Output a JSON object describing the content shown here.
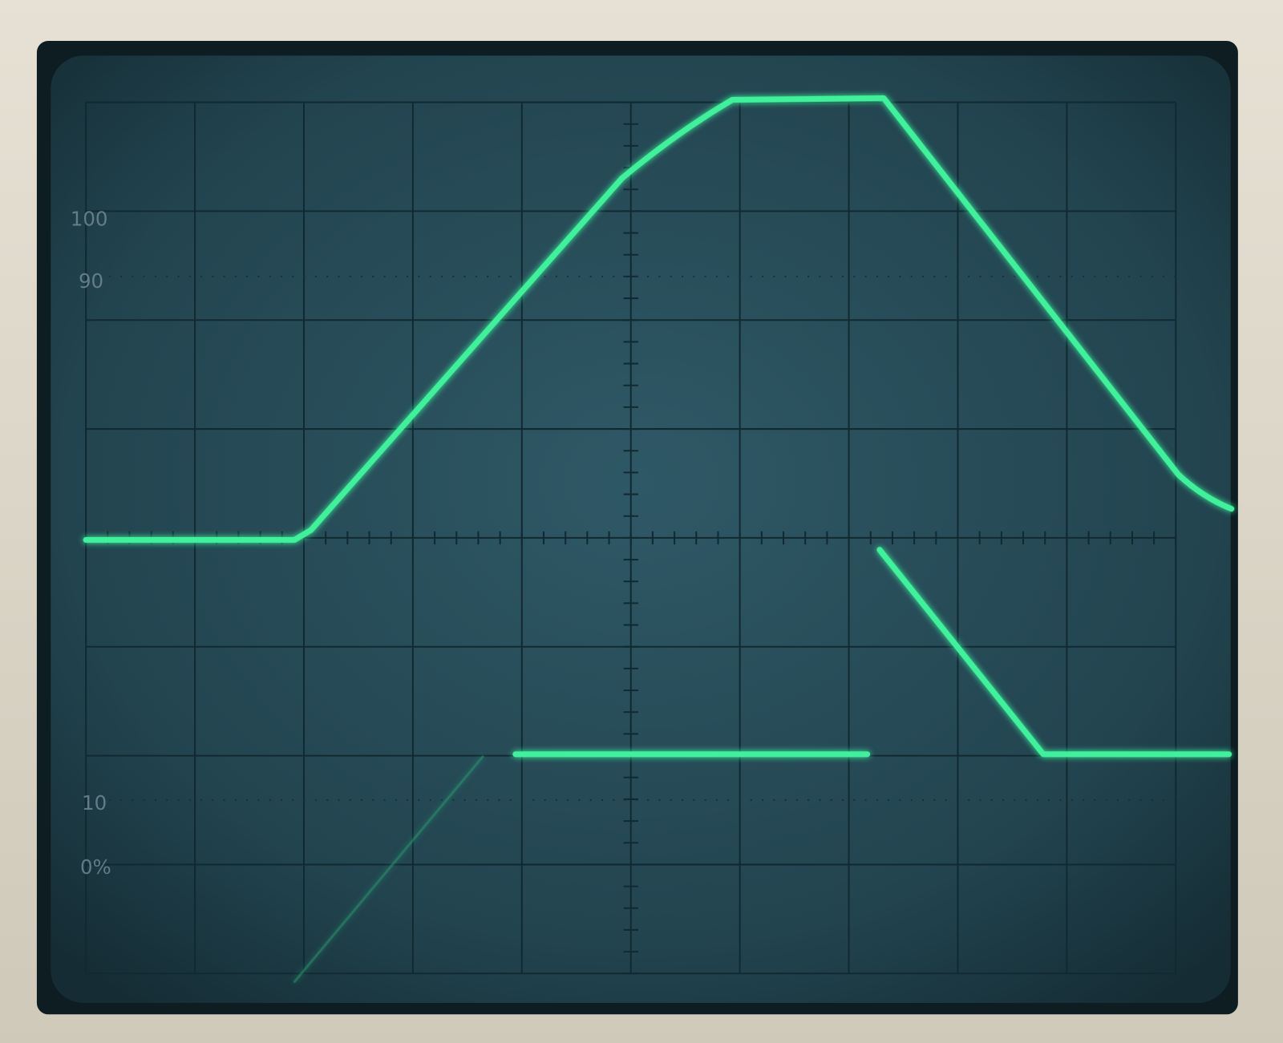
{
  "graticule": {
    "labels": {
      "top": "100",
      "upper": "90",
      "lower": "10",
      "bottom": "0%"
    }
  }
}
